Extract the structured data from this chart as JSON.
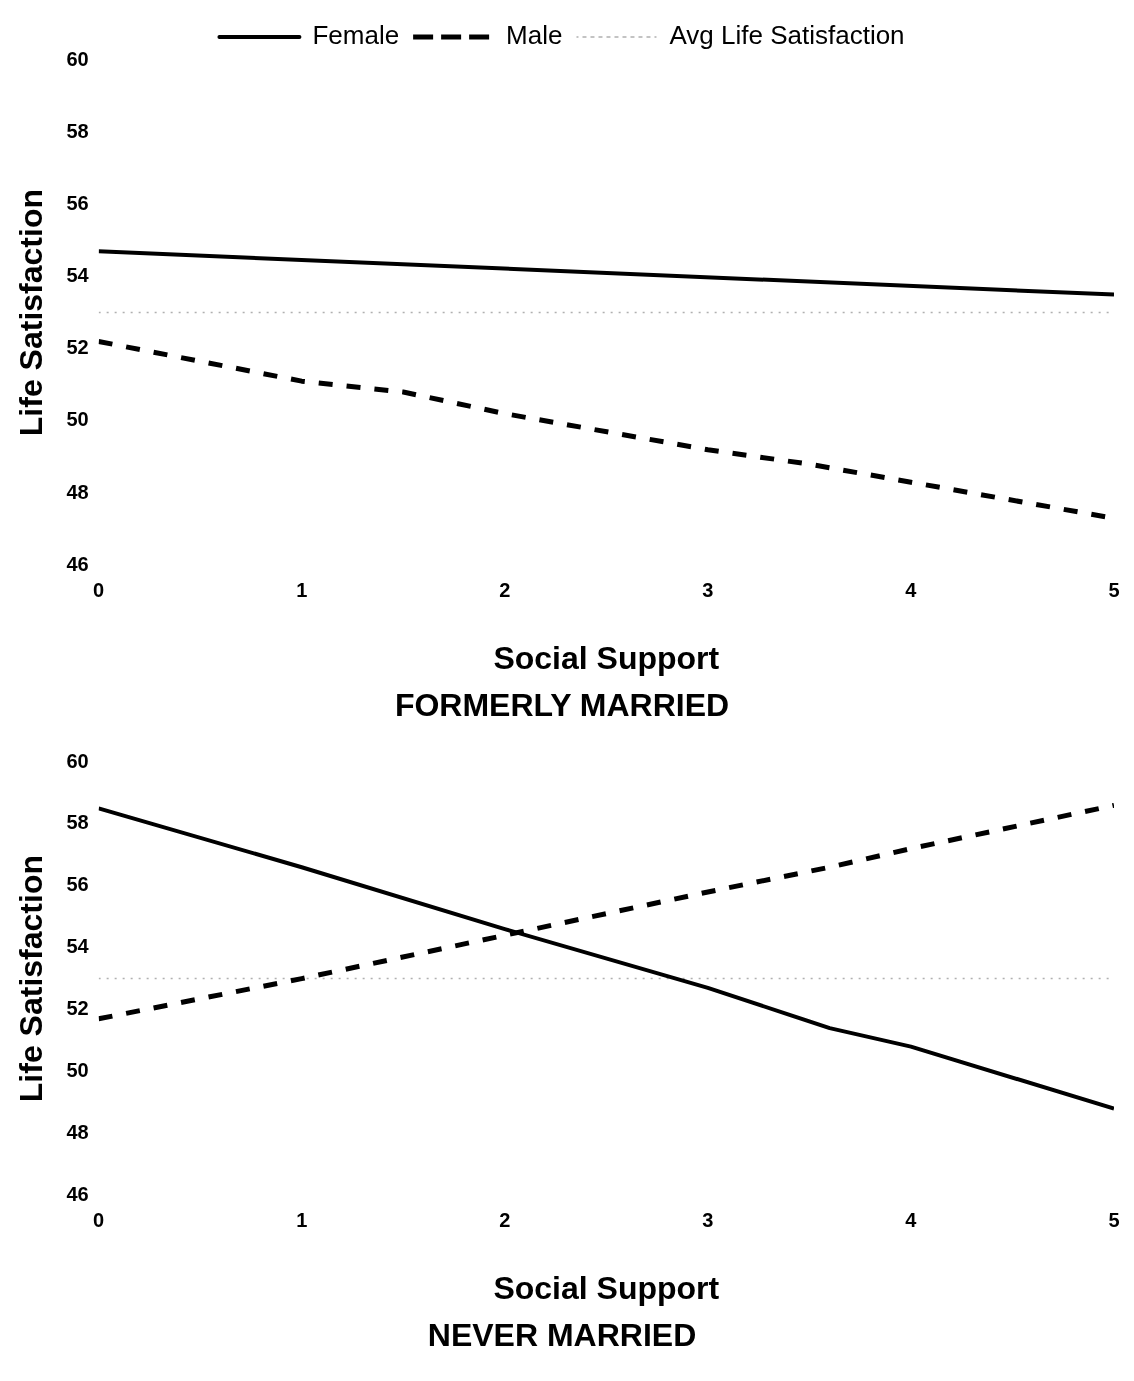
{
  "chart_data": [
    {
      "type": "line",
      "title": "FORMERLY MARRIED",
      "xlabel": "Social Support",
      "ylabel": "Life Satisfaction",
      "xlim": [
        0,
        5
      ],
      "xticks": [
        0,
        1,
        2,
        3,
        4,
        5
      ],
      "ylim": [
        46,
        60
      ],
      "yticks": [
        46,
        48,
        50,
        52,
        54,
        56,
        58,
        60
      ],
      "legend": "top",
      "grid": false,
      "marker": "none",
      "series": [
        {
          "name": "Female",
          "color": "#000000",
          "line_style": "solid",
          "x": [
            0,
            5
          ],
          "values": [
            54.7,
            53.5
          ]
        },
        {
          "name": "Male",
          "color": "#000000",
          "line_style": "dashed",
          "x": [
            0,
            1,
            1.5,
            2,
            3,
            3.5,
            4,
            5
          ],
          "values": [
            52.2,
            51.1,
            50.8,
            50.2,
            49.2,
            48.8,
            48.3,
            47.3
          ]
        },
        {
          "name": "Avg Life Satisfaction",
          "color": "#b0b0b0",
          "line_style": "dotted",
          "x": [
            0,
            5
          ],
          "values": [
            53,
            53
          ]
        }
      ]
    },
    {
      "type": "line",
      "title": "NEVER MARRIED",
      "xlabel": "Social Support",
      "ylabel": "Life Satisfaction",
      "xlim": [
        0,
        5
      ],
      "xticks": [
        0,
        1,
        2,
        3,
        4,
        5
      ],
      "ylim": [
        46,
        60
      ],
      "yticks": [
        46,
        48,
        50,
        52,
        54,
        56,
        58,
        60
      ],
      "grid": false,
      "marker": "none",
      "series": [
        {
          "color": "#000000",
          "line_style": "solid",
          "x": [
            0,
            1,
            2,
            3,
            3.6,
            4,
            5
          ],
          "values": [
            58.5,
            56.6,
            54.6,
            52.7,
            51.4,
            50.8,
            48.8
          ]
        },
        {
          "color": "#000000",
          "line_style": "dashed",
          "x": [
            0,
            1,
            2,
            3,
            3.6,
            4,
            5
          ],
          "values": [
            51.7,
            53,
            54.4,
            55.8,
            56.6,
            57.2,
            58.6
          ]
        },
        {
          "color": "#b0b0b0",
          "line_style": "dotted",
          "x": [
            0,
            5
          ],
          "values": [
            53,
            53
          ]
        }
      ]
    }
  ]
}
